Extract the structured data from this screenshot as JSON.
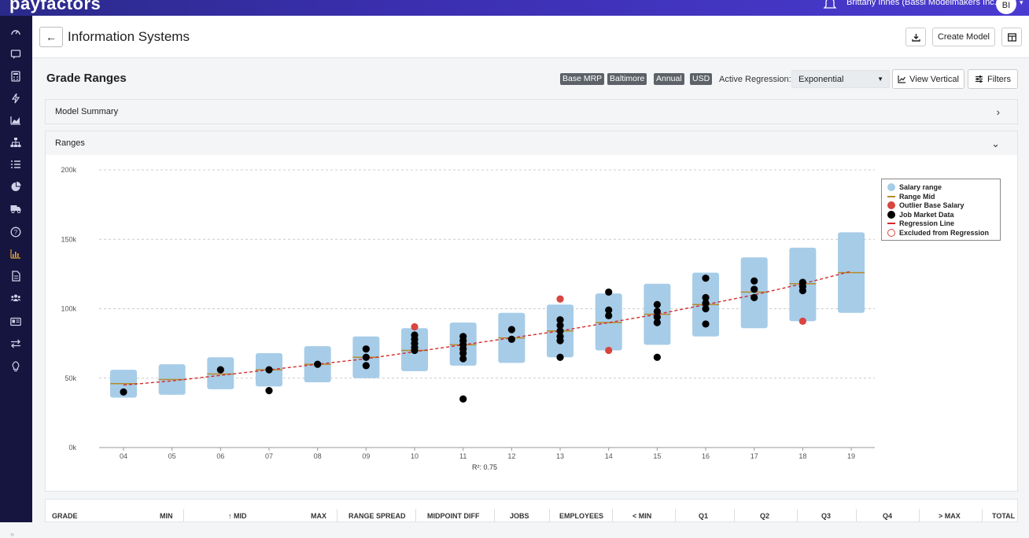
{
  "app": {
    "logo": "payfactors",
    "user_name": "Brittany Innes (Bassi Modelmakers Inc.)",
    "user_initials": "BI"
  },
  "header": {
    "back_label": "←",
    "title": "Information Systems",
    "create_model_label": "Create Model"
  },
  "toolbar": {
    "section_title": "Grade Ranges",
    "badges": [
      "Base MRP",
      "Baltimore",
      "Annual",
      "USD"
    ],
    "active_regression_label": "Active Regression:",
    "active_regression_value": "Exponential",
    "view_vertical_label": "View Vertical",
    "filters_label": "Filters"
  },
  "panels": {
    "model_summary": "Model Summary",
    "ranges": "Ranges"
  },
  "colors": {
    "salary_range": "#a6cce8",
    "range_mid": "#b58b2c",
    "outlier": "#d9453f",
    "job_market": "#000000",
    "regression": "#d42a2a"
  },
  "chart_data": {
    "type": "scatter",
    "y_ticks": [
      "0k",
      "50k",
      "100k",
      "150k",
      "200k"
    ],
    "ylim": [
      0,
      200
    ],
    "categories": [
      "04",
      "05",
      "06",
      "07",
      "08",
      "09",
      "10",
      "11",
      "12",
      "13",
      "14",
      "15",
      "16",
      "17",
      "18",
      "19"
    ],
    "ranges": [
      {
        "min": 36,
        "max": 56,
        "mid": 46
      },
      {
        "min": 38,
        "max": 60,
        "mid": 49
      },
      {
        "min": 42,
        "max": 65,
        "mid": 53
      },
      {
        "min": 44,
        "max": 68,
        "mid": 56
      },
      {
        "min": 47,
        "max": 73,
        "mid": 60
      },
      {
        "min": 50,
        "max": 80,
        "mid": 65
      },
      {
        "min": 55,
        "max": 86,
        "mid": 70
      },
      {
        "min": 59,
        "max": 90,
        "mid": 74
      },
      {
        "min": 61,
        "max": 97,
        "mid": 79
      },
      {
        "min": 65,
        "max": 103,
        "mid": 84
      },
      {
        "min": 70,
        "max": 111,
        "mid": 90
      },
      {
        "min": 74,
        "max": 118,
        "mid": 96
      },
      {
        "min": 80,
        "max": 126,
        "mid": 103
      },
      {
        "min": 86,
        "max": 137,
        "mid": 112
      },
      {
        "min": 91,
        "max": 144,
        "mid": 118
      },
      {
        "min": 97,
        "max": 155,
        "mid": 126
      }
    ],
    "job_market": [
      {
        "g": 0,
        "v": 40
      },
      {
        "g": 2,
        "v": 56
      },
      {
        "g": 3,
        "v": 56
      },
      {
        "g": 3,
        "v": 41
      },
      {
        "g": 4,
        "v": 60
      },
      {
        "g": 5,
        "v": 71
      },
      {
        "g": 5,
        "v": 65
      },
      {
        "g": 5,
        "v": 59
      },
      {
        "g": 6,
        "v": 81
      },
      {
        "g": 6,
        "v": 78
      },
      {
        "g": 6,
        "v": 75
      },
      {
        "g": 6,
        "v": 72
      },
      {
        "g": 6,
        "v": 70
      },
      {
        "g": 7,
        "v": 80
      },
      {
        "g": 7,
        "v": 77
      },
      {
        "g": 7,
        "v": 74
      },
      {
        "g": 7,
        "v": 71
      },
      {
        "g": 7,
        "v": 68
      },
      {
        "g": 7,
        "v": 64
      },
      {
        "g": 7,
        "v": 35
      },
      {
        "g": 8,
        "v": 85
      },
      {
        "g": 8,
        "v": 78
      },
      {
        "g": 9,
        "v": 92
      },
      {
        "g": 9,
        "v": 88
      },
      {
        "g": 9,
        "v": 84
      },
      {
        "g": 9,
        "v": 80
      },
      {
        "g": 9,
        "v": 77
      },
      {
        "g": 9,
        "v": 65
      },
      {
        "g": 10,
        "v": 112
      },
      {
        "g": 10,
        "v": 99
      },
      {
        "g": 10,
        "v": 95
      },
      {
        "g": 11,
        "v": 103
      },
      {
        "g": 11,
        "v": 98
      },
      {
        "g": 11,
        "v": 94
      },
      {
        "g": 11,
        "v": 90
      },
      {
        "g": 11,
        "v": 65
      },
      {
        "g": 12,
        "v": 122
      },
      {
        "g": 12,
        "v": 108
      },
      {
        "g": 12,
        "v": 104
      },
      {
        "g": 12,
        "v": 100
      },
      {
        "g": 12,
        "v": 89
      },
      {
        "g": 13,
        "v": 120
      },
      {
        "g": 13,
        "v": 114
      },
      {
        "g": 13,
        "v": 108
      },
      {
        "g": 14,
        "v": 119
      },
      {
        "g": 14,
        "v": 116
      },
      {
        "g": 14,
        "v": 113
      }
    ],
    "outliers": [
      {
        "g": 6,
        "v": 87
      },
      {
        "g": 9,
        "v": 107
      },
      {
        "g": 10,
        "v": 70
      },
      {
        "g": 14,
        "v": 91
      }
    ],
    "regression": [
      {
        "g": 0,
        "v": 45
      },
      {
        "g": 1,
        "v": 48
      },
      {
        "g": 2,
        "v": 52
      },
      {
        "g": 3,
        "v": 56
      },
      {
        "g": 4,
        "v": 60
      },
      {
        "g": 5,
        "v": 64
      },
      {
        "g": 6,
        "v": 69
      },
      {
        "g": 7,
        "v": 74
      },
      {
        "g": 8,
        "v": 79
      },
      {
        "g": 9,
        "v": 84
      },
      {
        "g": 10,
        "v": 90
      },
      {
        "g": 11,
        "v": 96
      },
      {
        "g": 12,
        "v": 103
      },
      {
        "g": 13,
        "v": 110
      },
      {
        "g": 14,
        "v": 118
      },
      {
        "g": 15,
        "v": 127
      }
    ],
    "legend": [
      "Salary range",
      "Range Mid",
      "Outlier Base Salary",
      "Job Market Data",
      "Regression Line",
      "Excluded from Regression"
    ],
    "r2_label": "R²: 0.75"
  },
  "table": {
    "headers": [
      "GRADE",
      "MIN",
      "↑ MID",
      "MAX",
      "RANGE SPREAD",
      "MIDPOINT DIFF",
      "JOBS",
      "EMPLOYEES",
      "< MIN",
      "Q1",
      "Q2",
      "Q3",
      "Q4",
      "> MAX",
      "TOTAL E"
    ]
  },
  "sidebar_icons": [
    "dashboard-icon",
    "chat-icon",
    "calculator-icon",
    "lightning-icon",
    "area-chart-icon",
    "org-chart-icon",
    "list-icon",
    "pie-chart-icon",
    "truck-icon",
    "help-icon",
    "bar-chart-icon",
    "document-icon",
    "users-icon",
    "id-card-icon",
    "transfer-icon",
    "lightbulb-icon"
  ]
}
